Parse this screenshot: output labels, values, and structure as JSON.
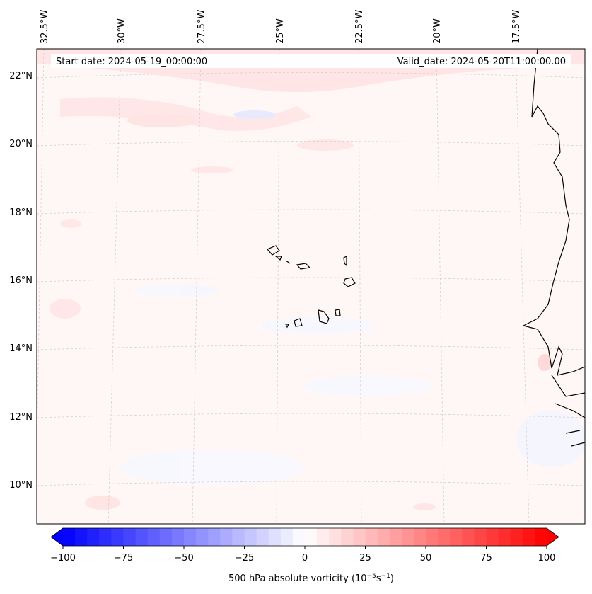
{
  "header": {
    "start_date": "Start date: 2024-05-19_00:00:00",
    "valid_date": "Valid_date: 2024-05-20T11:00:00.00"
  },
  "map": {
    "lon_labels": [
      "32.5°W",
      "30°W",
      "27.5°W",
      "25°W",
      "22.5°W",
      "20°W",
      "17.5°W"
    ],
    "lat_labels": [
      "22°N",
      "20°N",
      "18°N",
      "16°N",
      "14°N",
      "12°N",
      "10°N"
    ]
  },
  "colorbar": {
    "label": "500 hPa absolute vorticity (10",
    "label_exp1": "−5",
    "label_mid": "s",
    "label_exp2": "−1",
    "label_end": ")",
    "ticks": [
      "−100",
      "−75",
      "−50",
      "−25",
      "0",
      "25",
      "50",
      "75",
      "100"
    ],
    "min": -100,
    "max": 100,
    "step": 5,
    "low_color": "#0000ff",
    "mid_color": "#ffffff",
    "high_color": "#ff0000"
  }
}
